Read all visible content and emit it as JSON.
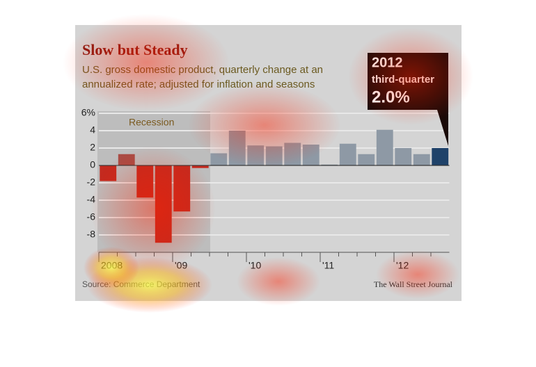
{
  "chart_data": {
    "type": "bar",
    "title": "Slow but Steady",
    "subtitle": "U.S. gross domestic product, quarterly change at an annualized rate; adjusted for inflation and seasons",
    "annotation": "Recession",
    "callout": {
      "year": "2012",
      "label": "third-quarter",
      "value": "2.0%"
    },
    "source": "Source: Commerce Department",
    "credit": "The Wall Street Journal",
    "categories": [
      "2008",
      null,
      null,
      null,
      "'09",
      null,
      null,
      null,
      "'10",
      null,
      null,
      null,
      "'11",
      null,
      null,
      null,
      "'12",
      null,
      null
    ],
    "values": [
      -1.8,
      1.3,
      -3.7,
      -8.9,
      -5.3,
      -0.3,
      1.4,
      4.0,
      2.3,
      2.2,
      2.6,
      2.4,
      0.1,
      2.5,
      1.3,
      4.1,
      2.0,
      1.3,
      2.0
    ],
    "colors": [
      "#c42a1f",
      "#a94c45",
      "#c42a1f",
      "#c42a1f",
      "#c42a1f",
      "#c42a1f",
      "#8e99a5",
      "#8e99a5",
      "#8e99a5",
      "#8e99a5",
      "#8e99a5",
      "#8e99a5",
      "#8e99a5",
      "#8e99a5",
      "#8e99a5",
      "#8e99a5",
      "#8e99a5",
      "#8e99a5",
      "#1f4269"
    ],
    "ylim": [
      -10,
      6
    ],
    "yticks": [
      {
        "value": 6,
        "label": "6%"
      },
      4,
      2,
      0,
      -2,
      -4,
      -6,
      -8
    ],
    "grid": true
  }
}
